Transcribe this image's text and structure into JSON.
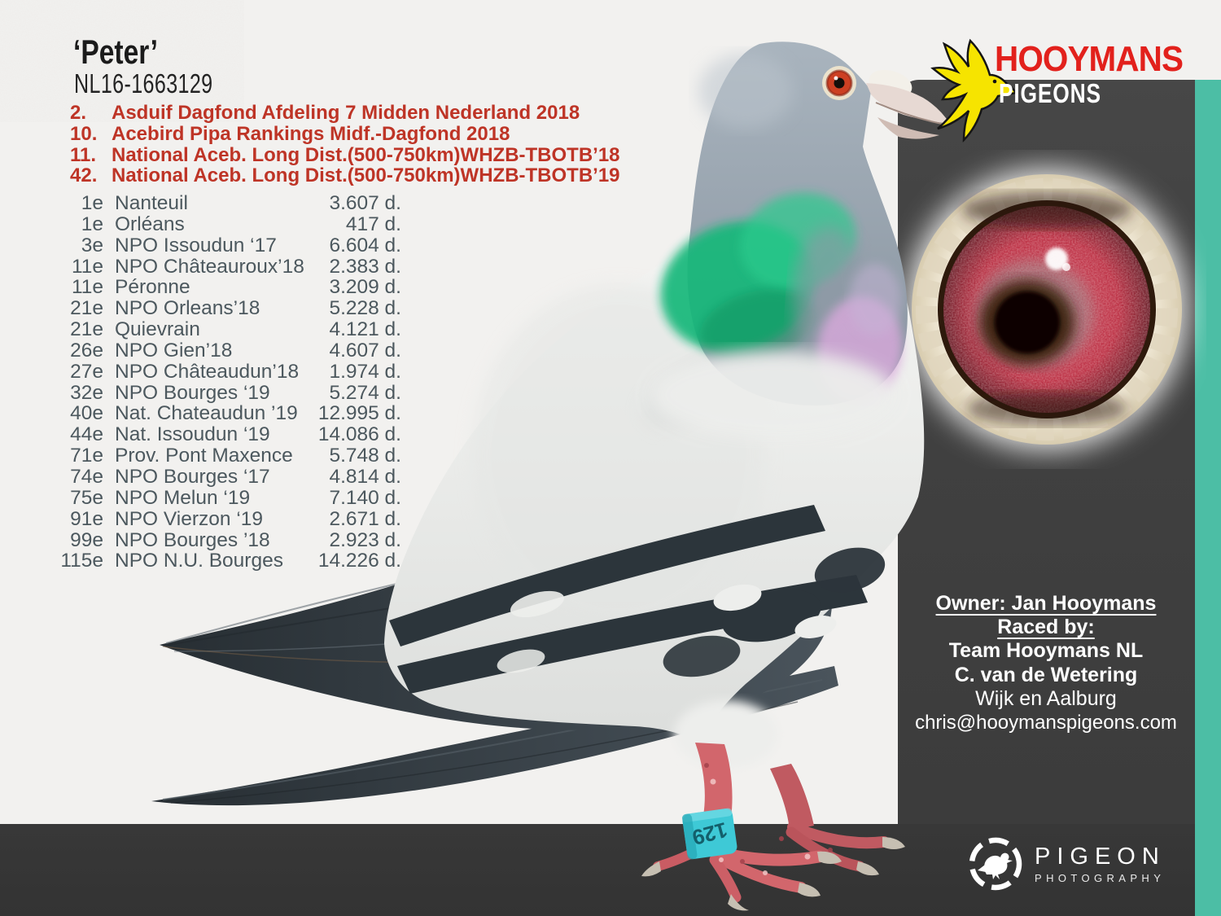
{
  "title": {
    "name": "‘Peter’",
    "ring": "NL16-1663129"
  },
  "achievements": [
    {
      "rank": "2.",
      "text": "Asduif Dagfond Afdeling 7 Midden Nederland 2018"
    },
    {
      "rank": "10.",
      "text": "Acebird Pipa Rankings Midf.-Dagfond 2018"
    },
    {
      "rank": "11.",
      "text": "National Aceb. Long Dist.(500-750km)WHZB-TBOTB’18"
    },
    {
      "rank": "42.",
      "text": "National Aceb. Long Dist.(500-750km)WHZB-TBOTB’19"
    }
  ],
  "results": [
    {
      "rank": "1e",
      "race": "Nanteuil",
      "against": "3.607 d."
    },
    {
      "rank": "1e",
      "race": "Orléans",
      "against": "417 d."
    },
    {
      "rank": "3e",
      "race": "NPO Issoudun ‘17",
      "against": "6.604 d."
    },
    {
      "rank": "11e",
      "race": "NPO Châteauroux’18",
      "against": "2.383 d."
    },
    {
      "rank": "11e",
      "race": "Péronne",
      "against": "3.209 d."
    },
    {
      "rank": "21e",
      "race": "NPO Orleans’18",
      "against": "5.228 d."
    },
    {
      "rank": "21e",
      "race": "Quievrain",
      "against": "4.121 d."
    },
    {
      "rank": "26e",
      "race": "NPO Gien’18",
      "against": "4.607 d."
    },
    {
      "rank": "27e",
      "race": "NPO Châteaudun’18",
      "against": "1.974 d."
    },
    {
      "rank": "32e",
      "race": "NPO Bourges ‘19",
      "against": "5.274 d."
    },
    {
      "rank": "40e",
      "race": "Nat. Chateaudun ’19",
      "against": "12.995 d."
    },
    {
      "rank": "44e",
      "race": "Nat. Issoudun ‘19",
      "against": "14.086 d."
    },
    {
      "rank": "71e",
      "race": "Prov. Pont Maxence",
      "against": "5.748 d."
    },
    {
      "rank": "74e",
      "race": "NPO Bourges ‘17",
      "against": "4.814 d."
    },
    {
      "rank": "75e",
      "race": "NPO Melun ‘19",
      "against": "7.140 d."
    },
    {
      "rank": "91e",
      "race": "NPO Vierzon ‘19",
      "against": "2.671 d."
    },
    {
      "rank": "99e",
      "race": "NPO Bourges ’18",
      "against": "2.923 d."
    },
    {
      "rank": "115e",
      "race": "NPO N.U. Bourges",
      "against": "14.226 d."
    }
  ],
  "brand": {
    "name": "HOOYMANS",
    "sub": "PIGEONS"
  },
  "owner": {
    "owner_line": "Owner: Jan Hooymans",
    "raced_by": "Raced by: ",
    "team": "Team Hooymans NL",
    "handler": "C. van de Wetering",
    "city": "Wijk en Aalburg",
    "email": "chris@hooymanspigeons.com"
  },
  "photo_credit": {
    "name": "PIGEON",
    "sub": "PHOTOGRAPHY"
  },
  "pigeon": {
    "leg_band": "129"
  },
  "colors": {
    "paper": "#F2F1EF",
    "panel_gray": "#414141",
    "footer_gray": "#383838",
    "accent_teal": "#4CBEA5",
    "title_red": "#BE3426",
    "logo_red": "#E2211C",
    "logo_yellow": "#F6E400",
    "results_gray": "#4C585E",
    "leg_band_cyan": "#3EC9D6",
    "text_dark": "#1B1B1B"
  }
}
